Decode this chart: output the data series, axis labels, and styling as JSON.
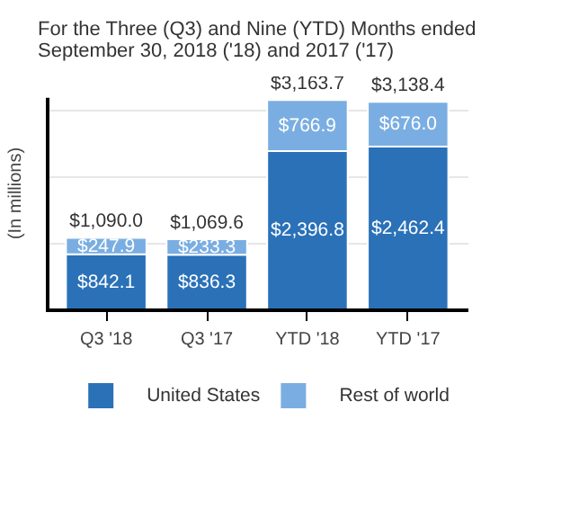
{
  "chart_data": {
    "type": "bar",
    "title": "For the Three (Q3) and Nine (YTD) Months ended\nSeptember 30, 2018 ('18) and 2017 ('17)",
    "ylabel": "(In millions)",
    "categories": [
      "Q3 '18",
      "Q3 '17",
      "YTD '18",
      "YTD '17"
    ],
    "stacked": true,
    "series": [
      {
        "name": "United States",
        "color": "#2a71b8",
        "values": [
          842.1,
          836.3,
          2396.8,
          2462.4
        ],
        "value_labels": [
          "$842.1",
          "$836.3",
          "$2,396.8",
          "$2,462.4"
        ]
      },
      {
        "name": "Rest of world",
        "color": "#7aaee2",
        "values": [
          247.9,
          233.3,
          766.9,
          676.0
        ],
        "value_labels": [
          "$247.9",
          "$233.3",
          "$766.9",
          "$676.0"
        ]
      }
    ],
    "totals": [
      "$1,090.0",
      "$1,069.6",
      "$3,163.7",
      "$3,138.4"
    ],
    "ylim": [
      0,
      3200
    ],
    "yticks": [
      {
        "value": 1000,
        "label": null
      },
      {
        "value": 2000,
        "label": null
      },
      {
        "value": 3000,
        "label": null
      }
    ],
    "grid": "y",
    "legend": "bottom"
  }
}
